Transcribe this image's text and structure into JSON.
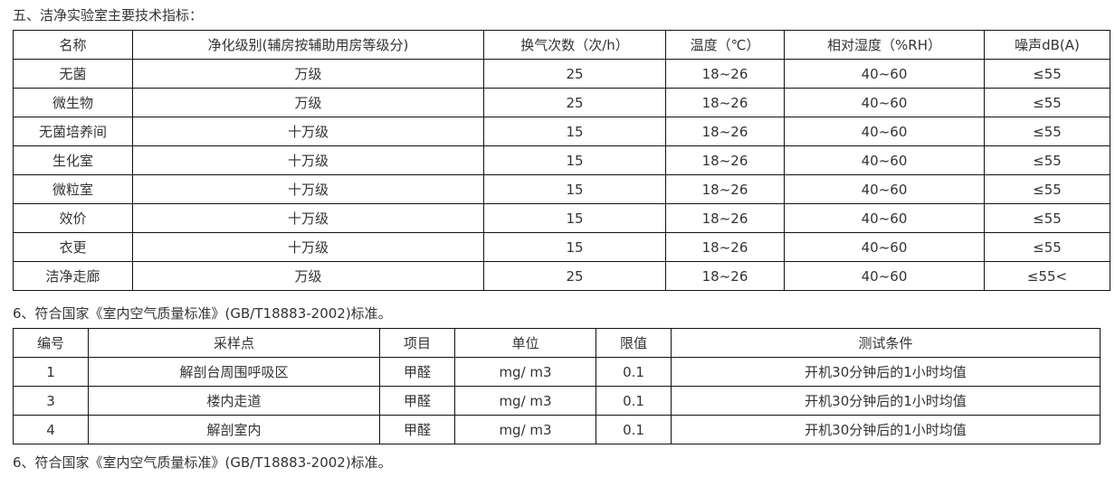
{
  "section5_title": "五、洁净实验室主要技术指标：",
  "table1": {
    "headers": [
      "名称",
      "净化级别(辅房按辅助用房等级分)",
      "换气次数（次/h）",
      "温度（℃）",
      "相对湿度（%RH）",
      "噪声dB(A)"
    ],
    "rows": [
      [
        "无菌",
        "万级",
        "25",
        "18~26",
        "40~60",
        "≤55"
      ],
      [
        "微生物",
        "万级",
        "25",
        "18~26",
        "40~60",
        "≤55"
      ],
      [
        "无菌培养间",
        "十万级",
        "15",
        "18~26",
        "40~60",
        "≤55"
      ],
      [
        "生化室",
        "十万级",
        "15",
        "18~26",
        "40~60",
        "≤55"
      ],
      [
        "微粒室",
        "十万级",
        "15",
        "18~26",
        "40~60",
        "≤55"
      ],
      [
        "效价",
        "十万级",
        "15",
        "18~26",
        "40~60",
        "≤55"
      ],
      [
        "衣更",
        "十万级",
        "15",
        "18~26",
        "40~60",
        "≤55"
      ],
      [
        "洁净走廊",
        "万级",
        "25",
        "18~26",
        "40~60",
        "≤55<"
      ]
    ]
  },
  "section6_title": "6、符合国家《室内空气质量标准》(GB/T18883-2002)标准。",
  "table2": {
    "headers": [
      "编号",
      "采样点",
      "项目",
      "单位",
      "限值",
      "测试条件"
    ],
    "rows": [
      [
        "1",
        "解剖台周围呼吸区",
        "甲醛",
        "mg/ m3",
        "0.1",
        "开机30分钟后的1小时均值"
      ],
      [
        "3",
        "楼内走道",
        "甲醛",
        "mg/ m3",
        "0.1",
        "开机30分钟后的1小时均值"
      ],
      [
        "4",
        "解剖室内",
        "甲醛",
        "mg/ m3",
        "0.1",
        "开机30分钟后的1小时均值"
      ]
    ]
  },
  "section6_repeat": "6、符合国家《室内空气质量标准》(GB/T18883-2002)标准。"
}
